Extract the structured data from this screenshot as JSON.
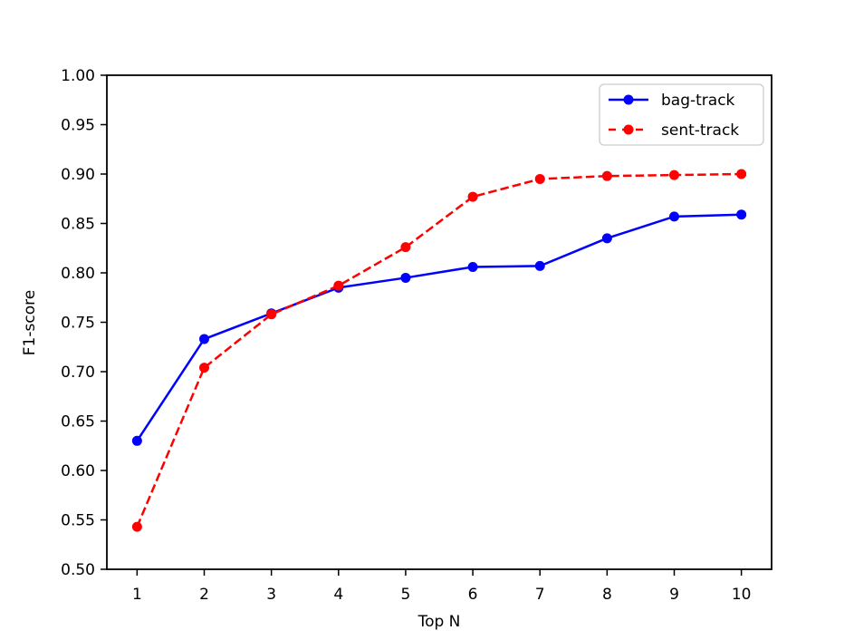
{
  "chart_data": {
    "type": "line",
    "title": "",
    "xlabel": "Top N",
    "ylabel": "F1-score",
    "x": [
      1,
      2,
      3,
      4,
      5,
      6,
      7,
      8,
      9,
      10
    ],
    "xticks": [
      1,
      2,
      3,
      4,
      5,
      6,
      7,
      8,
      9,
      10
    ],
    "yticks": [
      0.5,
      0.55,
      0.6,
      0.65,
      0.7,
      0.75,
      0.8,
      0.85,
      0.9,
      0.95,
      1.0
    ],
    "xlim": [
      0.55,
      10.45
    ],
    "ylim": [
      0.5,
      1.0
    ],
    "grid": false,
    "legend_position": "upper right",
    "series": [
      {
        "name": "bag-track",
        "color": "#0000ff",
        "linestyle": "solid",
        "marker": "circle",
        "values": [
          0.63,
          0.733,
          0.759,
          0.785,
          0.795,
          0.806,
          0.807,
          0.835,
          0.857,
          0.859
        ]
      },
      {
        "name": "sent-track",
        "color": "#ff0000",
        "linestyle": "dashed",
        "marker": "circle",
        "values": [
          0.543,
          0.704,
          0.758,
          0.787,
          0.826,
          0.877,
          0.895,
          0.898,
          0.899,
          0.9
        ]
      }
    ]
  },
  "colors": {
    "axis": "#000000",
    "background": "#ffffff",
    "legend_border": "#cccccc",
    "legend_background": "#ffffff"
  }
}
